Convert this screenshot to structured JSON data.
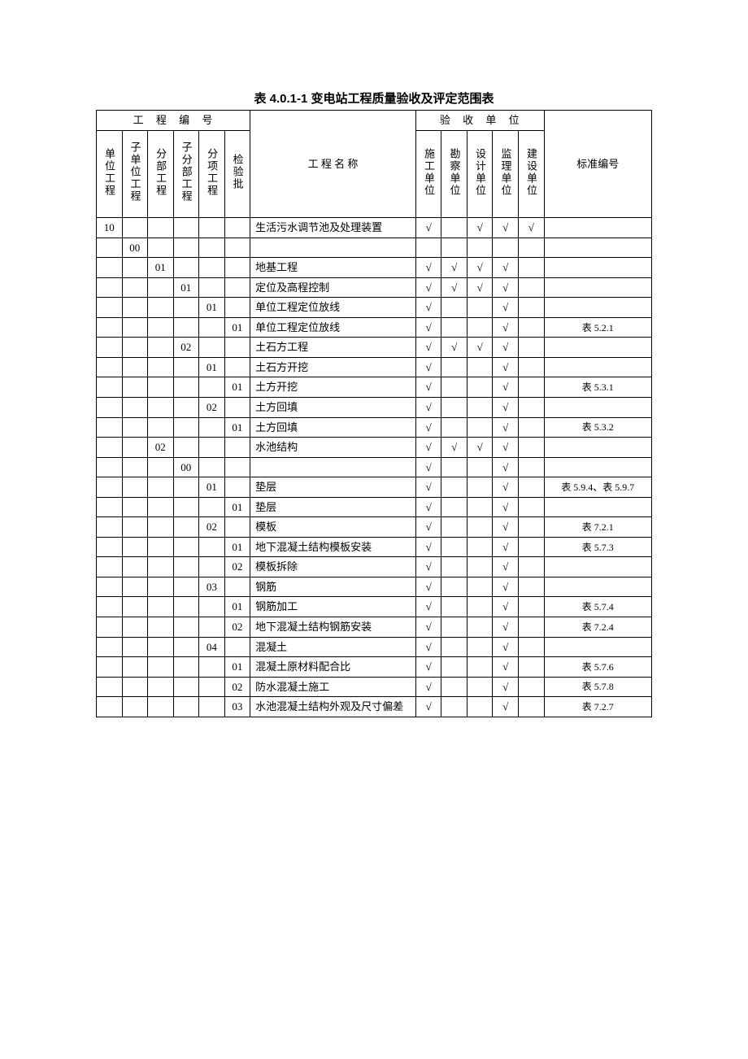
{
  "title": "表 4.0.1-1 变电站工程质量验收及评定范围表",
  "header": {
    "group_code": "工 程 编 号",
    "group_accept": "验 收 单 位",
    "code_cols": [
      "单位工程",
      "子单位工程",
      "分部工程",
      "子分部工程",
      "分项工程",
      "检验批"
    ],
    "name": "工 程 名 称",
    "unit_cols": [
      "施工单位",
      "勘察单位",
      "设计单位",
      "监理单位",
      "建设单位"
    ],
    "std": "标准编号"
  },
  "check": "√",
  "rows": [
    {
      "c": [
        "10",
        "",
        "",
        "",
        "",
        ""
      ],
      "name": "生活污水调节池及处理装置",
      "u": [
        1,
        0,
        1,
        1,
        1
      ],
      "std": ""
    },
    {
      "c": [
        "",
        "00",
        "",
        "",
        "",
        ""
      ],
      "name": "",
      "u": [
        0,
        0,
        0,
        0,
        0
      ],
      "std": ""
    },
    {
      "c": [
        "",
        "",
        "01",
        "",
        "",
        ""
      ],
      "name": "地基工程",
      "u": [
        1,
        1,
        1,
        1,
        0
      ],
      "std": ""
    },
    {
      "c": [
        "",
        "",
        "",
        "01",
        "",
        ""
      ],
      "name": "定位及高程控制",
      "u": [
        1,
        1,
        1,
        1,
        0
      ],
      "std": ""
    },
    {
      "c": [
        "",
        "",
        "",
        "",
        "01",
        ""
      ],
      "name": "单位工程定位放线",
      "u": [
        1,
        0,
        0,
        1,
        0
      ],
      "std": ""
    },
    {
      "c": [
        "",
        "",
        "",
        "",
        "",
        "01"
      ],
      "name": "单位工程定位放线",
      "u": [
        1,
        0,
        0,
        1,
        0
      ],
      "std": "表 5.2.1"
    },
    {
      "c": [
        "",
        "",
        "",
        "02",
        "",
        ""
      ],
      "name": "土石方工程",
      "u": [
        1,
        1,
        1,
        1,
        0
      ],
      "std": ""
    },
    {
      "c": [
        "",
        "",
        "",
        "",
        "01",
        ""
      ],
      "name": "土石方开挖",
      "u": [
        1,
        0,
        0,
        1,
        0
      ],
      "std": ""
    },
    {
      "c": [
        "",
        "",
        "",
        "",
        "",
        "01"
      ],
      "name": "土方开挖",
      "u": [
        1,
        0,
        0,
        1,
        0
      ],
      "std": "表 5.3.1"
    },
    {
      "c": [
        "",
        "",
        "",
        "",
        "02",
        ""
      ],
      "name": "土方回填",
      "u": [
        1,
        0,
        0,
        1,
        0
      ],
      "std": ""
    },
    {
      "c": [
        "",
        "",
        "",
        "",
        "",
        "01"
      ],
      "name": "土方回填",
      "u": [
        1,
        0,
        0,
        1,
        0
      ],
      "std": "表 5.3.2"
    },
    {
      "c": [
        "",
        "",
        "02",
        "",
        "",
        ""
      ],
      "name": "水池结构",
      "u": [
        1,
        1,
        1,
        1,
        0
      ],
      "std": ""
    },
    {
      "c": [
        "",
        "",
        "",
        "00",
        "",
        ""
      ],
      "name": "",
      "u": [
        1,
        0,
        0,
        1,
        0
      ],
      "std": ""
    },
    {
      "c": [
        "",
        "",
        "",
        "",
        "01",
        ""
      ],
      "name": "垫层",
      "u": [
        1,
        0,
        0,
        1,
        0
      ],
      "std": "表 5.9.4、表 5.9.7"
    },
    {
      "c": [
        "",
        "",
        "",
        "",
        "",
        "01"
      ],
      "name": "垫层",
      "u": [
        1,
        0,
        0,
        1,
        0
      ],
      "std": ""
    },
    {
      "c": [
        "",
        "",
        "",
        "",
        "02",
        ""
      ],
      "name": "模板",
      "u": [
        1,
        0,
        0,
        1,
        0
      ],
      "std": "表 7.2.1"
    },
    {
      "c": [
        "",
        "",
        "",
        "",
        "",
        "01"
      ],
      "name": "地下混凝土结构模板安装",
      "u": [
        1,
        0,
        0,
        1,
        0
      ],
      "std": "表 5.7.3"
    },
    {
      "c": [
        "",
        "",
        "",
        "",
        "",
        "02"
      ],
      "name": "模板拆除",
      "u": [
        1,
        0,
        0,
        1,
        0
      ],
      "std": ""
    },
    {
      "c": [
        "",
        "",
        "",
        "",
        "03",
        ""
      ],
      "name": "钢筋",
      "u": [
        1,
        0,
        0,
        1,
        0
      ],
      "std": ""
    },
    {
      "c": [
        "",
        "",
        "",
        "",
        "",
        "01"
      ],
      "name": "钢筋加工",
      "u": [
        1,
        0,
        0,
        1,
        0
      ],
      "std": "表 5.7.4"
    },
    {
      "c": [
        "",
        "",
        "",
        "",
        "",
        "02"
      ],
      "name": "地下混凝土结构钢筋安装",
      "u": [
        1,
        0,
        0,
        1,
        0
      ],
      "std": "表 7.2.4"
    },
    {
      "c": [
        "",
        "",
        "",
        "",
        "04",
        ""
      ],
      "name": "混凝土",
      "u": [
        1,
        0,
        0,
        1,
        0
      ],
      "std": ""
    },
    {
      "c": [
        "",
        "",
        "",
        "",
        "",
        "01"
      ],
      "name": "混凝土原材料配合比",
      "u": [
        1,
        0,
        0,
        1,
        0
      ],
      "std": "表 5.7.6"
    },
    {
      "c": [
        "",
        "",
        "",
        "",
        "",
        "02"
      ],
      "name": "防水混凝土施工",
      "u": [
        1,
        0,
        0,
        1,
        0
      ],
      "std": "表 5.7.8"
    },
    {
      "c": [
        "",
        "",
        "",
        "",
        "",
        "03"
      ],
      "name": "水池混凝土结构外观及尺寸偏差",
      "u": [
        1,
        0,
        0,
        1,
        0
      ],
      "std": "表 7.2.7"
    }
  ]
}
